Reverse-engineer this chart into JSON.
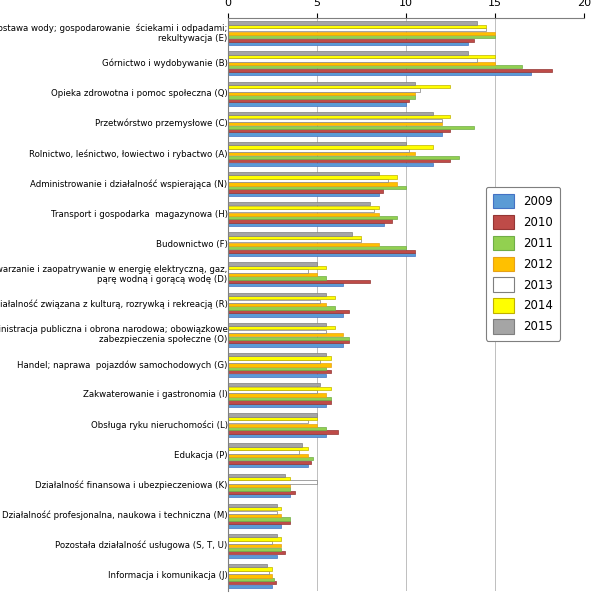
{
  "categories": [
    "Dostawa wody; gospodarowanie  ściekami i odpadami;\nrekultywacja (E)",
    "Górnictwo i wydobywanie (B)",
    "Opieka zdrowotna i pomoc społeczna (Q)",
    "Przetwórstwo przemysłowe (C)",
    "Rolnictwo, leśnictwo, łowiectwo i rybactwo (A)",
    "Administrowanie i działalność wspierająca (N)",
    "Transport i gospodarka  magazynowa (H)",
    "Budownictwo (F)",
    "Wytwarzanie i zaopatrywanie w energię elektryczną, gaz,\npąrę wodną i gorącą wodę (D)",
    "Działalność związana z kulturą, rozrywką i rekreacją (R)",
    "Administracja publiczna i obrona narodowa; obowiązkowe\nzabezpieczenia społeczne (O)",
    "Handel; naprawa  pojazdów samochodowych (G)",
    "Zakwaterowanie i gastronomia (I)",
    "Obsługa ryku nieruchomości (L)",
    "Edukacja (P)",
    "Działalność finansowa i ubezpieczeniowa (K)",
    "Działalność profesjonalna, naukowa i techniczna (M)",
    "Pozostała działalność usługowa (S, T, U)",
    "Informacja i komunikacja (J)"
  ],
  "series": {
    "2009": [
      13.5,
      17.0,
      10.0,
      12.0,
      11.5,
      8.5,
      8.8,
      10.5,
      6.5,
      6.5,
      6.5,
      5.5,
      5.5,
      5.5,
      4.5,
      3.5,
      3.0,
      2.8,
      2.5
    ],
    "2010": [
      13.8,
      18.2,
      10.2,
      12.5,
      12.5,
      8.7,
      9.2,
      10.5,
      8.0,
      6.8,
      6.8,
      5.8,
      5.8,
      6.2,
      4.7,
      3.8,
      3.5,
      3.2,
      2.7
    ],
    "2011": [
      15.0,
      16.5,
      10.5,
      13.8,
      13.0,
      10.0,
      9.5,
      10.0,
      5.5,
      6.0,
      6.8,
      5.5,
      5.8,
      5.5,
      4.8,
      3.5,
      3.5,
      3.0,
      2.6
    ],
    "2012": [
      15.0,
      15.0,
      10.5,
      12.0,
      10.5,
      9.5,
      8.5,
      8.5,
      5.0,
      5.5,
      6.5,
      5.8,
      5.5,
      5.0,
      4.5,
      3.5,
      3.0,
      3.0,
      2.5
    ],
    "2013": [
      14.5,
      14.0,
      10.8,
      12.0,
      10.2,
      9.0,
      8.2,
      7.5,
      4.5,
      5.2,
      5.5,
      5.2,
      5.0,
      4.5,
      4.0,
      5.0,
      2.8,
      2.5,
      2.3
    ],
    "2014": [
      14.5,
      15.0,
      12.5,
      12.5,
      11.5,
      9.5,
      8.5,
      7.5,
      5.5,
      6.0,
      6.0,
      5.8,
      5.8,
      5.0,
      4.5,
      3.5,
      3.0,
      3.0,
      2.5
    ],
    "2015": [
      14.0,
      13.5,
      10.5,
      11.5,
      10.0,
      8.5,
      8.0,
      7.0,
      5.0,
      5.5,
      5.5,
      5.5,
      5.2,
      5.0,
      4.2,
      3.2,
      2.8,
      2.8,
      2.2
    ]
  },
  "colors": {
    "2009": "#5B9BD5",
    "2010": "#BE4B48",
    "2011": "#92D050",
    "2012": "#FFC000",
    "2013": "#FFFFFF",
    "2014": "#FFFF00",
    "2015": "#A5A5A5"
  },
  "edge_colors": {
    "2009": "#4472C4",
    "2010": "#943634",
    "2011": "#70AD47",
    "2012": "#E6A118",
    "2013": "#7F7F7F",
    "2014": "#C0B000",
    "2015": "#7F7F7F"
  },
  "xlim": [
    0,
    20
  ],
  "xticks": [
    0,
    5,
    10,
    15,
    20
  ],
  "legend_years": [
    "2009",
    "2010",
    "2011",
    "2012",
    "2013",
    "2014",
    "2015"
  ],
  "background_color": "#FFFFFF",
  "grid_color": "#BFBFBF"
}
